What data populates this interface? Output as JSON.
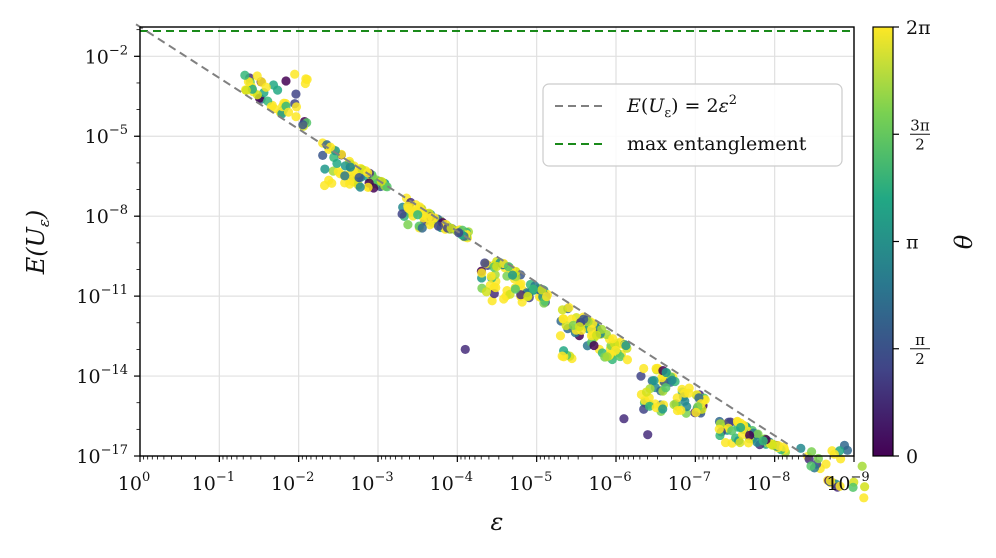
{
  "chart_data": {
    "type": "scatter",
    "title": "",
    "xlabel": "ε",
    "ylabel": "E(U_ε)",
    "x_scale": "log_reversed",
    "y_scale": "log",
    "xlim_log10": [
      0,
      -9
    ],
    "ylim_log10": [
      -17,
      -0.9
    ],
    "x_ticks": [
      {
        "exp": 0,
        "base": "10",
        "sup": "0"
      },
      {
        "exp": -1,
        "base": "10",
        "sup": "−1"
      },
      {
        "exp": -2,
        "base": "10",
        "sup": "−2"
      },
      {
        "exp": -3,
        "base": "10",
        "sup": "−3"
      },
      {
        "exp": -4,
        "base": "10",
        "sup": "−4"
      },
      {
        "exp": -5,
        "base": "10",
        "sup": "−5"
      },
      {
        "exp": -6,
        "base": "10",
        "sup": "−6"
      },
      {
        "exp": -7,
        "base": "10",
        "sup": "−7"
      },
      {
        "exp": -8,
        "base": "10",
        "sup": "−8"
      },
      {
        "exp": -9,
        "base": "10",
        "sup": "−9"
      }
    ],
    "y_ticks": [
      {
        "exp": -2,
        "base": "10",
        "sup": "−2"
      },
      {
        "exp": -5,
        "base": "10",
        "sup": "−5"
      },
      {
        "exp": -8,
        "base": "10",
        "sup": "−8"
      },
      {
        "exp": -11,
        "base": "10",
        "sup": "−11"
      },
      {
        "exp": -14,
        "base": "10",
        "sup": "−14"
      },
      {
        "exp": -17,
        "base": "10",
        "sup": "−17"
      }
    ],
    "grid": true,
    "legend_position": "top-right",
    "series": [
      {
        "name": "E(U_ε) = 2ε²",
        "style": "dashed",
        "color": "#808080",
        "points": [
          {
            "log_eps": 0.05,
            "log_E": -0.8
          },
          {
            "log_eps": -8.4,
            "log_E": -17.0
          }
        ]
      },
      {
        "name": "max entanglement",
        "style": "dashed",
        "color": "#1a8a1a",
        "log_E": -1.05
      }
    ],
    "scatter_groups": [
      {
        "log_eps": -1.3,
        "log_E_range": [
          -2.6,
          -1.7
        ],
        "count": 45
      },
      {
        "log_eps": -2.3,
        "log_E_range": [
          -7.0,
          -4.2
        ],
        "count": 70
      },
      {
        "log_eps": -3.3,
        "log_E_range": [
          -8.5,
          -6.9
        ],
        "count": 75
      },
      {
        "log_eps": -4.3,
        "log_E_range": [
          -11.3,
          -9.7
        ],
        "count": 75
      },
      {
        "log_eps": -5.3,
        "log_E_range": [
          -13.4,
          -11.4
        ],
        "count": 80
      },
      {
        "log_eps": -6.3,
        "log_E_range": [
          -15.4,
          -13.7
        ],
        "count": 75
      },
      {
        "log_eps": -7.3,
        "log_E_range": [
          -16.6,
          -15.7
        ],
        "count": 70
      },
      {
        "log_eps": -8.3,
        "log_E_range": [
          -16.6,
          -16.5
        ],
        "count": 30
      }
    ],
    "outliers": [
      {
        "log_eps": -4.1,
        "log_E": -13.0
      },
      {
        "log_eps": -6.1,
        "log_E": -15.6
      },
      {
        "log_eps": -6.4,
        "log_E": -16.2
      }
    ],
    "colorbar": {
      "label": "θ",
      "ticks": [
        "2π",
        "3π/2",
        "π",
        "π/2",
        "0"
      ],
      "colors": [
        "#fde725",
        "#7ad151",
        "#22a884",
        "#2a788e",
        "#414487",
        "#440154"
      ]
    },
    "legend": [
      {
        "label": "E(U_ε) = 2ε²",
        "color": "#808080"
      },
      {
        "label": "max entanglement",
        "color": "#1a8a1a"
      }
    ]
  }
}
